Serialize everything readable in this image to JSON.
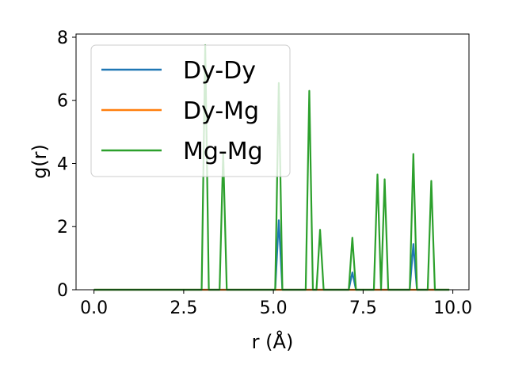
{
  "chart_data": {
    "type": "line",
    "xlabel": "r (Å)",
    "ylabel": "g(r)",
    "xlim": [
      -0.5,
      10.45
    ],
    "ylim": [
      0,
      8.1
    ],
    "xticks": [
      0.0,
      2.5,
      5.0,
      7.5,
      10.0
    ],
    "xtick_labels": [
      "0.0",
      "2.5",
      "5.0",
      "7.5",
      "10.0"
    ],
    "yticks": [
      0,
      2,
      4,
      6,
      8
    ],
    "ytick_labels": [
      "0",
      "2",
      "4",
      "6",
      "8"
    ],
    "grid": false,
    "legend_placement": "upper-left",
    "series": [
      {
        "name": "Dy-Dy",
        "color": "#1f77b4",
        "points": [
          [
            0.0,
            0
          ],
          [
            5.05,
            0
          ],
          [
            5.15,
            2.2
          ],
          [
            5.25,
            0
          ],
          [
            7.1,
            0
          ],
          [
            7.2,
            0.55
          ],
          [
            7.3,
            0
          ],
          [
            8.8,
            0
          ],
          [
            8.9,
            1.45
          ],
          [
            9.0,
            0
          ],
          [
            9.9,
            0
          ]
        ]
      },
      {
        "name": "Dy-Mg",
        "color": "#ff7f0e",
        "points": [
          [
            0.0,
            0
          ],
          [
            9.9,
            0
          ]
        ]
      },
      {
        "name": "Mg-Mg",
        "color": "#2ca02c",
        "points": [
          [
            0.0,
            0
          ],
          [
            3.0,
            0
          ],
          [
            3.1,
            7.75
          ],
          [
            3.2,
            0
          ],
          [
            3.5,
            0
          ],
          [
            3.6,
            4.35
          ],
          [
            3.7,
            0
          ],
          [
            5.05,
            0
          ],
          [
            5.15,
            6.55
          ],
          [
            5.25,
            0
          ],
          [
            5.9,
            0
          ],
          [
            6.0,
            6.3
          ],
          [
            6.1,
            0
          ],
          [
            6.2,
            0
          ],
          [
            6.3,
            1.9
          ],
          [
            6.4,
            0
          ],
          [
            7.1,
            0
          ],
          [
            7.2,
            1.65
          ],
          [
            7.3,
            0
          ],
          [
            7.8,
            0
          ],
          [
            7.9,
            3.65
          ],
          [
            8.0,
            0
          ],
          [
            8.0,
            0
          ],
          [
            8.1,
            3.5
          ],
          [
            8.2,
            0
          ],
          [
            8.8,
            0
          ],
          [
            8.9,
            4.3
          ],
          [
            9.0,
            0
          ],
          [
            9.3,
            0
          ],
          [
            9.4,
            3.45
          ],
          [
            9.5,
            0
          ],
          [
            9.9,
            0
          ]
        ]
      }
    ]
  }
}
